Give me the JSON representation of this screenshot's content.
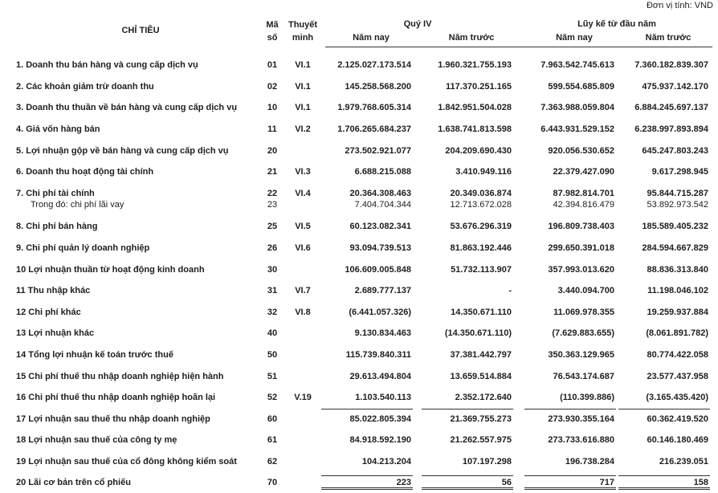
{
  "header": {
    "unit": "Đơn vị tính: VND",
    "col_item": "CHỈ TIÊU",
    "col_code": "Mã số",
    "col_note": "Thuyết minh",
    "group_quarter": "Quý IV",
    "group_ytd": "Lũy kế từ đầu năm",
    "sub_cols": [
      "Năm nay",
      "Năm trước",
      "Năm nay",
      "Năm trước"
    ]
  },
  "table": {
    "rows": [
      {
        "label": "1. Doanh thu bán hàng và cung cấp dịch vụ",
        "code": "01",
        "note": "VI.1",
        "values": [
          "2.125.027.173.514",
          "1.960.321.755.193",
          "7.963.542.745.613",
          "7.360.182.839.307"
        ]
      },
      {
        "label": "2. Các khoản giảm trừ doanh thu",
        "code": "02",
        "note": "VI.1",
        "values": [
          "145.258.568.200",
          "117.370.251.165",
          "599.554.685.809",
          "475.937.142.170"
        ]
      },
      {
        "label": "3. Doanh thu thuần về bán hàng và cung cấp dịch vụ",
        "code": "10",
        "note": "VI.1",
        "values": [
          "1.979.768.605.314",
          "1.842.951.504.028",
          "7.363.988.059.804",
          "6.884.245.697.137"
        ]
      },
      {
        "label": "4. Giá vốn hàng bán",
        "code": "11",
        "note": "VI.2",
        "values": [
          "1.706.265.684.237",
          "1.638.741.813.598",
          "6.443.931.529.152",
          "6.238.997.893.894"
        ]
      },
      {
        "label": "5. Lợi nhuận gộp về bán hàng và cung cấp dịch vụ",
        "code": "20",
        "values": [
          "273.502.921.077",
          "204.209.690.430",
          "920.056.530.652",
          "645.247.803.243"
        ]
      },
      {
        "label": "6. Doanh thu hoạt động tài chính",
        "code": "21",
        "note": "VI.3",
        "values": [
          "6.688.215.088",
          "3.410.949.116",
          "22.379.427.090",
          "9.617.298.945"
        ]
      },
      {
        "label": "7. Chi phí tài chính",
        "code": "22",
        "note": "VI.4",
        "values": [
          "20.364.308.463",
          "20.349.036.874",
          "87.982.814.701",
          "95.844.715.287"
        ],
        "detail": {
          "label": "Trong đó: chi phí lãi vay",
          "code": "23",
          "values": [
            "7.404.704.344",
            "12.713.672.028",
            "42.394.816.479",
            "53.892.973.542"
          ]
        }
      },
      {
        "label": "8. Chi phí bán hàng",
        "code": "25",
        "note": "VI.5",
        "values": [
          "60.123.082.341",
          "53.676.296.319",
          "196.809.738.403",
          "185.589.405.232"
        ]
      },
      {
        "label": "9. Chi phí quản lý doanh nghiệp",
        "code": "26",
        "note": "VI.6",
        "values": [
          "93.094.739.513",
          "81.863.192.446",
          "299.650.391.018",
          "284.594.667.829"
        ]
      },
      {
        "label": "10 Lợi nhuận thuần từ hoạt động kinh doanh",
        "code": "30",
        "values": [
          "106.609.005.848",
          "51.732.113.907",
          "357.993.013.620",
          "88.836.313.840"
        ]
      },
      {
        "label": "11 Thu nhập khác",
        "code": "31",
        "note": "VI.7",
        "values": [
          "2.689.777.137",
          "-",
          "3.440.094.700",
          "11.198.046.102"
        ]
      },
      {
        "label": "12 Chi phí khác",
        "code": "32",
        "note": "VI.8",
        "values": [
          "(6.441.057.326)",
          "14.350.671.110",
          "11.069.978.355",
          "19.259.937.884"
        ]
      },
      {
        "label": "13 Lợi nhuận khác",
        "code": "40",
        "values": [
          "9.130.834.463",
          "(14.350.671.110)",
          "(7.629.883.655)",
          "(8.061.891.782)"
        ]
      },
      {
        "label": "14 Tổng lợi nhuận kế toán trước thuế",
        "code": "50",
        "values": [
          "115.739.840.311",
          "37.381.442.797",
          "350.363.129.965",
          "80.774.422.058"
        ]
      },
      {
        "label": "15 Chi phí thuế thu nhập doanh nghiệp hiện hành",
        "code": "51",
        "values": [
          "29.613.494.804",
          "13.659.514.884",
          "76.543.174.687",
          "23.577.437.958"
        ]
      },
      {
        "label": "16 Chi phí thuế thu nhập doanh nghiệp hoãn lại",
        "code": "52",
        "note": "V.19",
        "values": [
          "1.103.540.113",
          "2.352.172.640",
          "(110.399.886)",
          "(3.165.435.420)"
        ]
      },
      {
        "label": "17 Lợi nhuận sau thuế thu nhập doanh nghiệp",
        "code": "60",
        "values": [
          "85.022.805.394",
          "21.369.755.273",
          "273.930.355.164",
          "60.362.419.520"
        ]
      },
      {
        "label": "18 Lợi nhuận sau thuế của công ty mẹ",
        "code": "61",
        "values": [
          "84.918.592.190",
          "21.262.557.975",
          "273.733.616.880",
          "60.146.180.469"
        ]
      },
      {
        "label": "19 Lợi nhuận sau thuế của cổ đông không kiểm soát",
        "code": "62",
        "values": [
          "104.213.204",
          "107.197.298",
          "196.738.284",
          "216.239.051"
        ]
      },
      {
        "label": "20 Lãi cơ bản trên cổ phiếu",
        "code": "70",
        "values": [
          "223",
          "56",
          "717",
          "158"
        ]
      }
    ]
  }
}
